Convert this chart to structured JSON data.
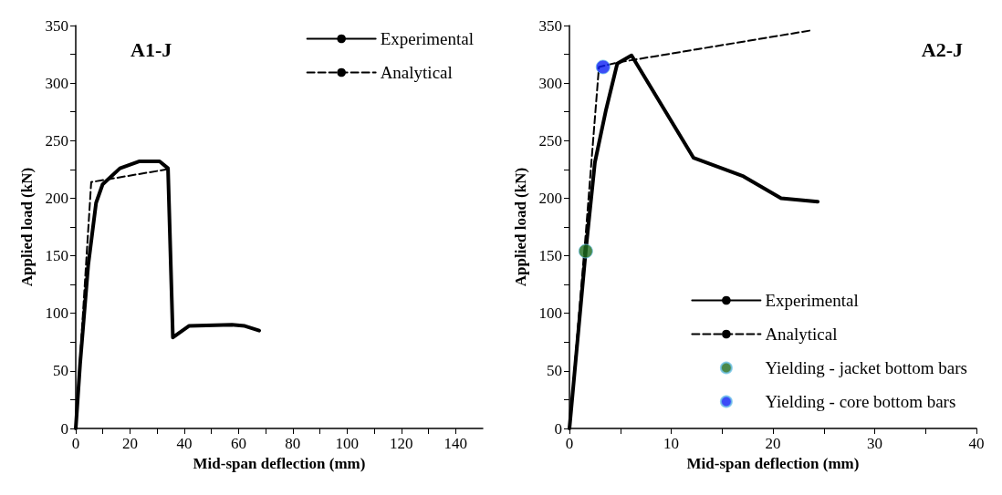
{
  "chart_data": [
    {
      "type": "line",
      "title": "A1-J",
      "xlabel": "Mid-span deflection (mm)",
      "ylabel": "Applied load (kN)",
      "xlim": [
        0,
        150
      ],
      "xticks": [
        0,
        20,
        40,
        60,
        80,
        100,
        120,
        140
      ],
      "ylim": [
        0,
        350
      ],
      "yticks": [
        0,
        50,
        100,
        150,
        200,
        250,
        300,
        350
      ],
      "grid": false,
      "legend": "top right",
      "marker": "none",
      "series": [
        {
          "name": "Experimental",
          "color": "#000000",
          "line_style": "solid",
          "x": [
            0,
            1.6,
            4.6,
            7.5,
            9.9,
            16.3,
            23.3,
            30.9,
            34,
            35.8,
            41.7,
            57.6,
            62.3,
            67.6
          ],
          "values": [
            0,
            56,
            142,
            196,
            212,
            226,
            232,
            232,
            226,
            79,
            89,
            90,
            89,
            85
          ]
        },
        {
          "name": "Analytical",
          "color": "#000000",
          "line_style": "dashed",
          "x": [
            0,
            5.7,
            33.5
          ],
          "values": [
            0,
            214,
            225
          ]
        }
      ]
    },
    {
      "type": "line",
      "title": "A2-J",
      "xlabel": "Mid-span deflection (mm)",
      "ylabel": "Applied load (kN)",
      "xlim": [
        0,
        40
      ],
      "xticks": [
        0,
        10,
        20,
        30,
        40
      ],
      "ylim": [
        0,
        350
      ],
      "yticks": [
        0,
        50,
        100,
        150,
        200,
        250,
        300,
        350
      ],
      "grid": false,
      "legend": "bottom right",
      "marker": "none",
      "series": [
        {
          "name": "Experimental",
          "color": "#000000",
          "line_style": "solid",
          "x": [
            0,
            1.6,
            2.5,
            3.6,
            4.7,
            6.1,
            12.2,
            17.1,
            20.8,
            24.4
          ],
          "values": [
            0,
            154,
            231,
            277,
            317,
            324,
            235,
            219,
            200,
            197
          ]
        },
        {
          "name": "Analytical",
          "color": "#000000",
          "line_style": "dashed",
          "x": [
            0,
            1.6,
            2.9,
            4.8,
            23.9
          ],
          "values": [
            0,
            169,
            314,
            318,
            346
          ]
        },
        {
          "name": "Yielding - jacket bottom bars",
          "type": "scatter",
          "marker": "circle",
          "color": "#1e6b1e",
          "x": [
            1.6
          ],
          "values": [
            154
          ]
        },
        {
          "name": "Yielding - core bottom bars",
          "type": "scatter",
          "marker": "circle",
          "color": "#0a1ff5",
          "x": [
            3.3
          ],
          "values": [
            314
          ]
        }
      ]
    }
  ]
}
